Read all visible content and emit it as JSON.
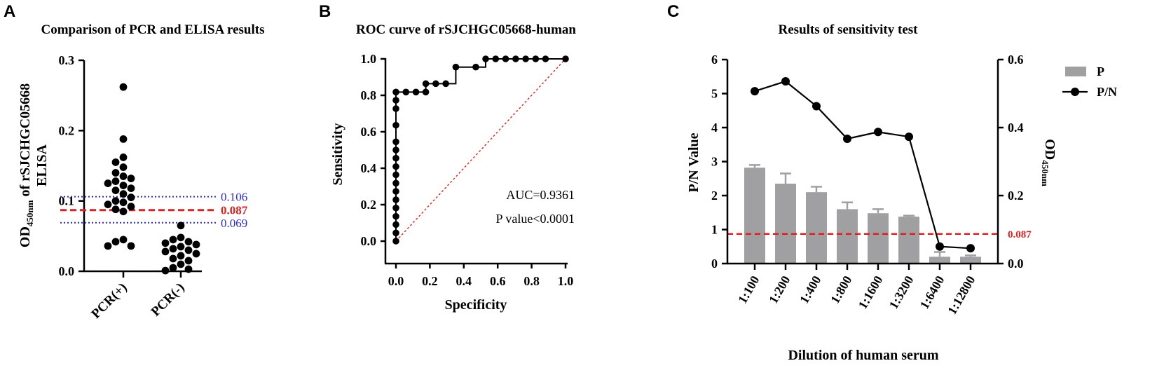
{
  "panels": {
    "a": "A",
    "b": "B",
    "c": "C"
  },
  "chart_data": [
    {
      "type": "scatter",
      "title": "Comparison of PCR and ELISA results",
      "ylabel_pre": "OD",
      "ylabel_sub": "450nm",
      "ylabel_post": " of rSJCHGC05668",
      "ylabel_line2": "ELISA",
      "ylim": [
        0,
        0.3
      ],
      "yticks": [
        "0.0",
        "0.1",
        "0.2",
        "0.3"
      ],
      "categories": [
        "PCR(+)",
        "PCR(-)"
      ],
      "groups": [
        {
          "name": "PCR(+)",
          "values": [
            0.262,
            0.188,
            0.162,
            0.155,
            0.148,
            0.14,
            0.135,
            0.132,
            0.128,
            0.125,
            0.122,
            0.118,
            0.115,
            0.11,
            0.105,
            0.1,
            0.098,
            0.095,
            0.092,
            0.088,
            0.085,
            0.045,
            0.042,
            0.036,
            0.036
          ]
        },
        {
          "name": "PCR(-)",
          "values": [
            0.065,
            0.048,
            0.045,
            0.042,
            0.04,
            0.038,
            0.035,
            0.032,
            0.03,
            0.028,
            0.025,
            0.022,
            0.018,
            0.015,
            0.01,
            0.005,
            0.003,
            0.001
          ]
        }
      ],
      "reference_lines": [
        {
          "value": 0.106,
          "label": "0.106",
          "color": "#2b2bd6",
          "style": "dotted"
        },
        {
          "value": 0.087,
          "label": "0.087",
          "color": "#e02020",
          "style": "dashed"
        },
        {
          "value": 0.069,
          "label": "0.069",
          "color": "#2b2bd6",
          "style": "dotted"
        }
      ]
    },
    {
      "type": "line",
      "title": "ROC curve of rSJCHGC05668-human",
      "xlabel": "Specificity",
      "ylabel": "Sensitivity",
      "xlim": [
        0,
        1
      ],
      "ylim": [
        0,
        1
      ],
      "xticks": [
        "0.0",
        "0.2",
        "0.4",
        "0.6",
        "0.8",
        "1.0"
      ],
      "yticks": [
        "0.0",
        "0.2",
        "0.4",
        "0.6",
        "0.8",
        "1.0"
      ],
      "auc_text": "AUC=0.9361",
      "p_text": "P value<0.0001",
      "roc_points": [
        [
          0,
          0
        ],
        [
          0,
          0.045
        ],
        [
          0,
          0.091
        ],
        [
          0,
          0.136
        ],
        [
          0,
          0.182
        ],
        [
          0,
          0.227
        ],
        [
          0,
          0.273
        ],
        [
          0,
          0.318
        ],
        [
          0,
          0.364
        ],
        [
          0,
          0.409
        ],
        [
          0,
          0.455
        ],
        [
          0,
          0.5
        ],
        [
          0,
          0.545
        ],
        [
          0,
          0.636
        ],
        [
          0,
          0.727
        ],
        [
          0,
          0.773
        ],
        [
          0,
          0.818
        ],
        [
          0.059,
          0.818
        ],
        [
          0.118,
          0.818
        ],
        [
          0.176,
          0.818
        ],
        [
          0.176,
          0.864
        ],
        [
          0.235,
          0.864
        ],
        [
          0.294,
          0.864
        ],
        [
          0.353,
          0.955
        ],
        [
          0.471,
          0.955
        ],
        [
          0.529,
          1.0
        ],
        [
          0.588,
          1.0
        ],
        [
          0.647,
          1.0
        ],
        [
          0.706,
          1.0
        ],
        [
          0.765,
          1.0
        ],
        [
          0.824,
          1.0
        ],
        [
          0.882,
          1.0
        ],
        [
          1.0,
          1.0
        ]
      ],
      "diagonal_color": "#e02020"
    },
    {
      "type": "bar",
      "title": "Results of sensitivity test",
      "xlabel": "Dilution of human serum",
      "ylabel_left": "P/N Value",
      "ylabel_right_pre": "OD",
      "ylabel_right_sub": "450nm",
      "ylim_left": [
        0,
        6
      ],
      "ylim_right": [
        0,
        0.6
      ],
      "yticks_left": [
        "0",
        "1",
        "2",
        "3",
        "4",
        "5",
        "6"
      ],
      "yticks_right": [
        "0.0",
        "0.2",
        "0.4",
        "0.6"
      ],
      "categories": [
        "1:100",
        "1:200",
        "1:400",
        "1:800",
        "1:1600",
        "1:3200",
        "1:6400",
        "1:12800"
      ],
      "series": [
        {
          "name": "P",
          "type": "bar",
          "axis": "right",
          "values": [
            0.282,
            0.235,
            0.21,
            0.16,
            0.148,
            0.138,
            0.02,
            0.02
          ],
          "errors": [
            0.008,
            0.03,
            0.016,
            0.02,
            0.012,
            0.003,
            0.014,
            0.004
          ],
          "color": "#a0a0a3"
        },
        {
          "name": "P/N",
          "type": "line",
          "axis": "left",
          "values": [
            5.07,
            5.36,
            4.63,
            3.67,
            3.87,
            3.73,
            0.5,
            0.45
          ],
          "color": "#000000"
        }
      ],
      "reference_line": {
        "value": 0.087,
        "label": "0.087",
        "color": "#e02020"
      },
      "legend_position": "top-right"
    }
  ]
}
